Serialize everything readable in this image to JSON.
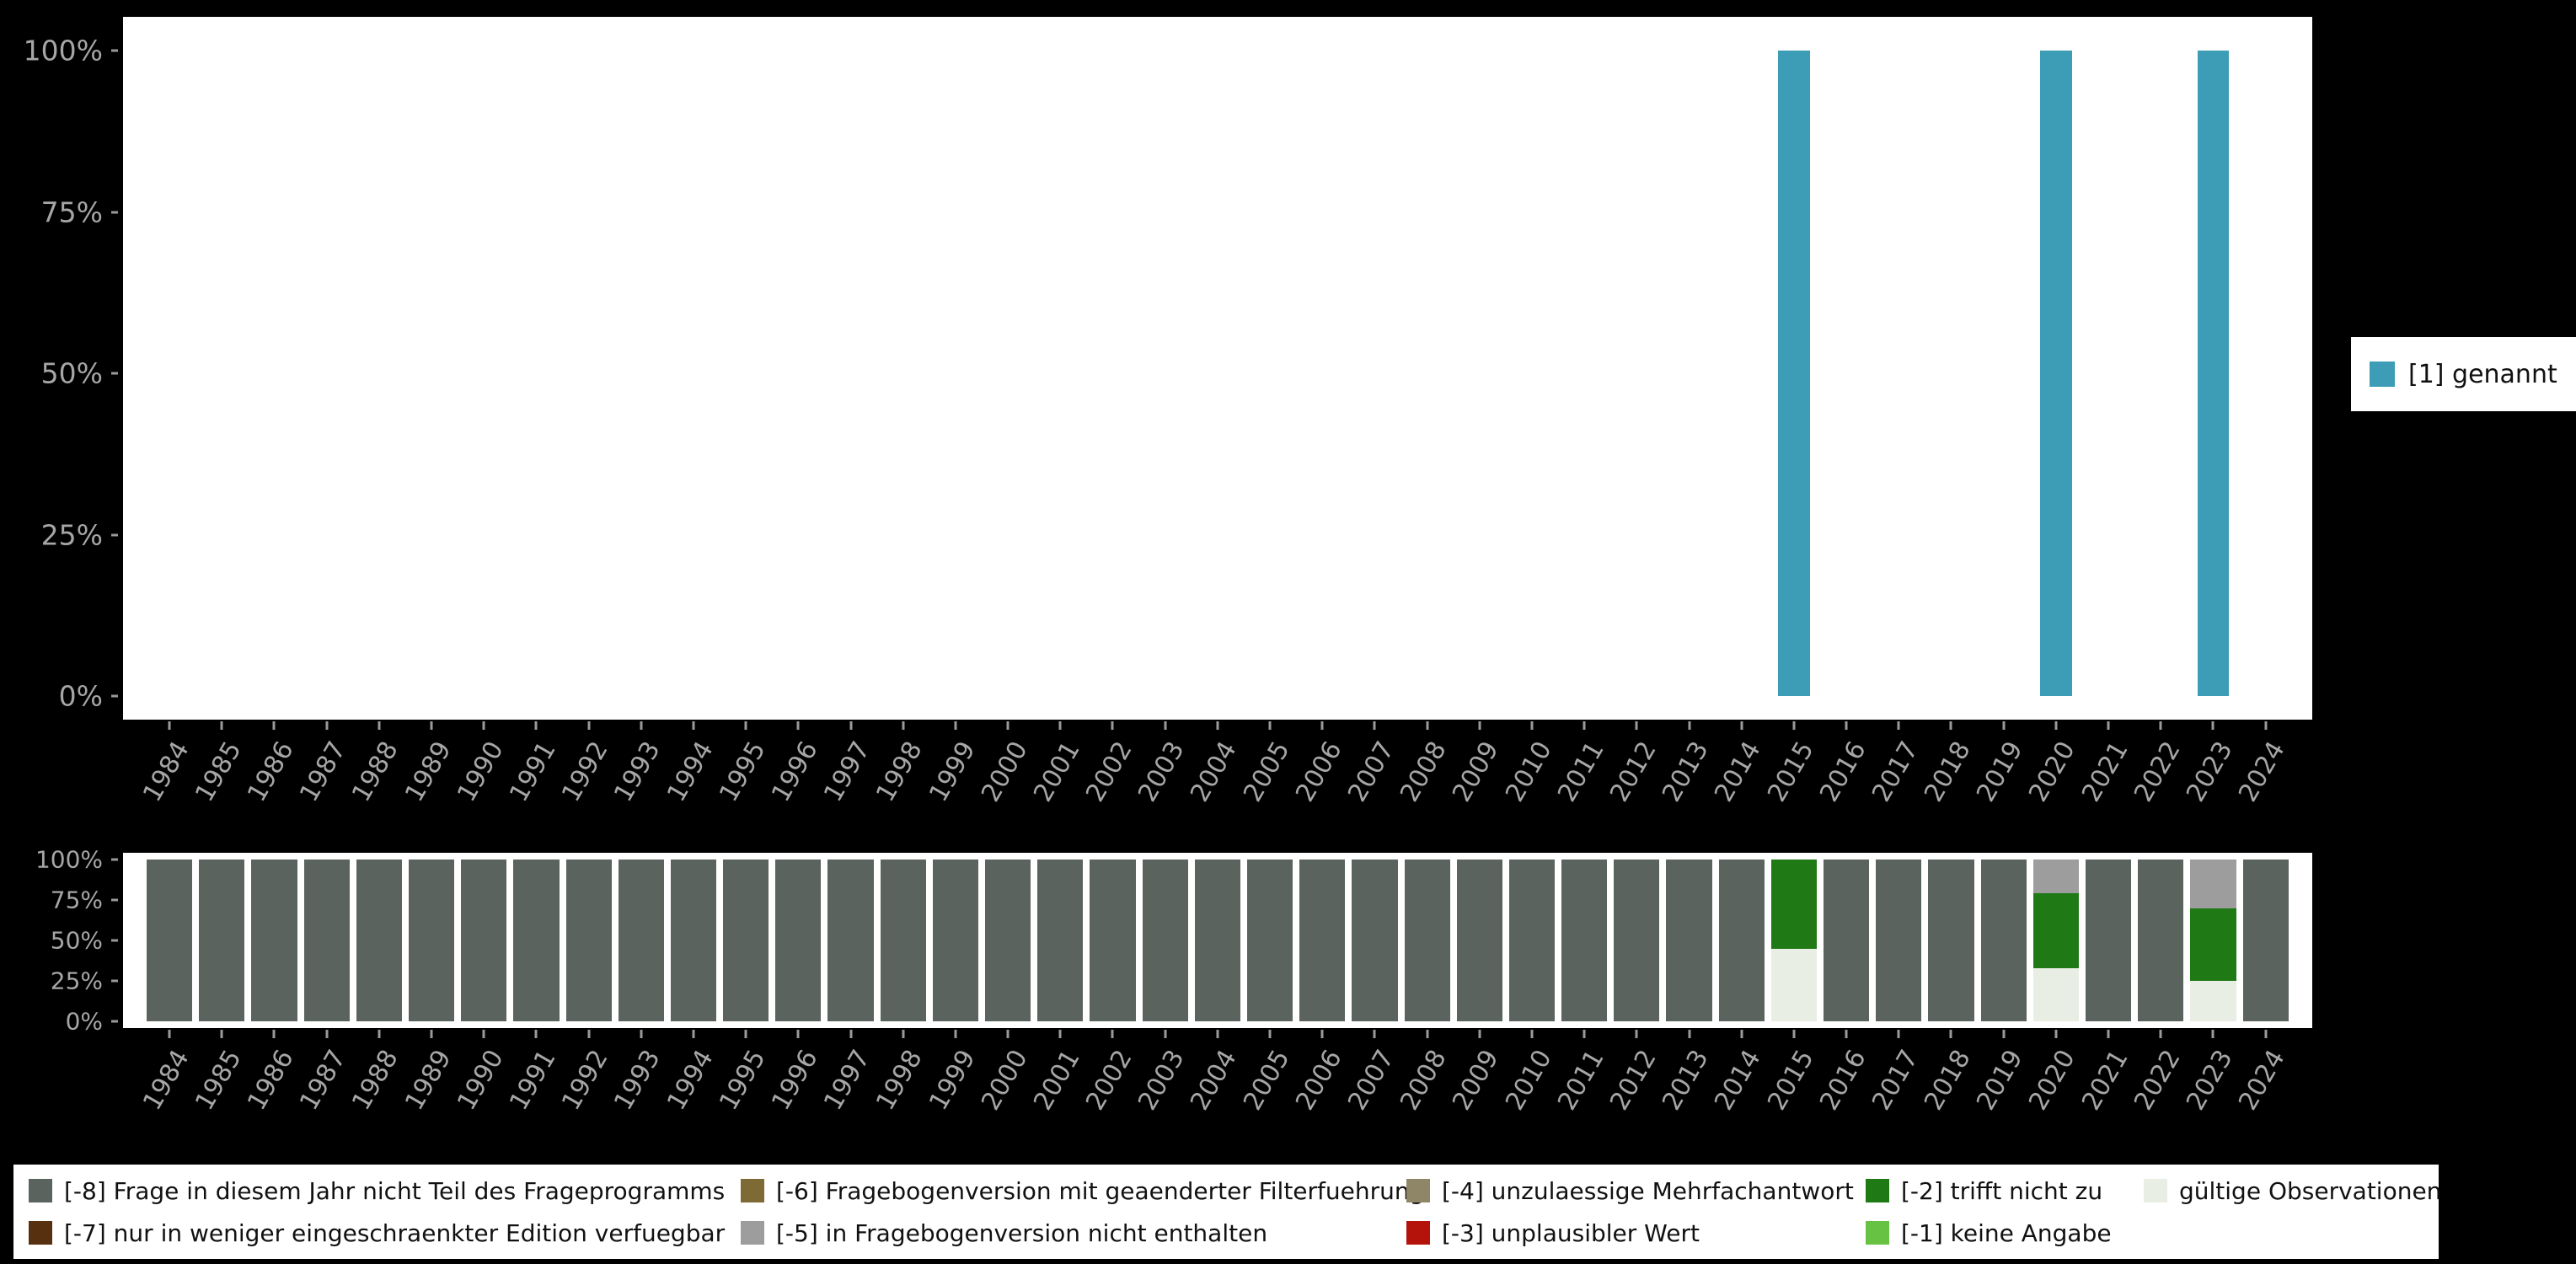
{
  "background_color": "#000000",
  "chart_data": [
    {
      "type": "bar",
      "title": "",
      "xlabel": "",
      "ylabel": "",
      "ylim": [
        0,
        100
      ],
      "yticks_top_down": [
        "100%",
        "75%",
        "50%",
        "25%",
        "0%"
      ],
      "x": [
        "1984",
        "1985",
        "1986",
        "1987",
        "1988",
        "1989",
        "1990",
        "1991",
        "1992",
        "1993",
        "1994",
        "1995",
        "1996",
        "1997",
        "1998",
        "1999",
        "2000",
        "2001",
        "2002",
        "2003",
        "2004",
        "2005",
        "2006",
        "2007",
        "2008",
        "2009",
        "2010",
        "2011",
        "2012",
        "2013",
        "2014",
        "2015",
        "2016",
        "2017",
        "2018",
        "2019",
        "2020",
        "2021",
        "2022",
        "2023",
        "2024"
      ],
      "series": [
        {
          "name": "[1] genannt",
          "color": "#3d9db6",
          "values": [
            0,
            0,
            0,
            0,
            0,
            0,
            0,
            0,
            0,
            0,
            0,
            0,
            0,
            0,
            0,
            0,
            0,
            0,
            0,
            0,
            0,
            0,
            0,
            0,
            0,
            0,
            0,
            0,
            0,
            0,
            0,
            100,
            0,
            0,
            0,
            0,
            100,
            0,
            0,
            100,
            0
          ]
        }
      ],
      "legend_position": "right"
    },
    {
      "type": "bar-stacked",
      "title": "",
      "xlabel": "",
      "ylabel": "",
      "ylim": [
        0,
        100
      ],
      "yticks_top_down": [
        "100%",
        "75%",
        "50%",
        "25%",
        "0%"
      ],
      "x": [
        "1984",
        "1985",
        "1986",
        "1987",
        "1988",
        "1989",
        "1990",
        "1991",
        "1992",
        "1993",
        "1994",
        "1995",
        "1996",
        "1997",
        "1998",
        "1999",
        "2000",
        "2001",
        "2002",
        "2003",
        "2004",
        "2005",
        "2006",
        "2007",
        "2008",
        "2009",
        "2010",
        "2011",
        "2012",
        "2013",
        "2014",
        "2015",
        "2016",
        "2017",
        "2018",
        "2019",
        "2020",
        "2021",
        "2022",
        "2023",
        "2024"
      ],
      "series": [
        {
          "name": "gültige Observationen",
          "color": "#e8eee4",
          "values": [
            0,
            0,
            0,
            0,
            0,
            0,
            0,
            0,
            0,
            0,
            0,
            0,
            0,
            0,
            0,
            0,
            0,
            0,
            0,
            0,
            0,
            0,
            0,
            0,
            0,
            0,
            0,
            0,
            0,
            0,
            0,
            45,
            0,
            0,
            0,
            0,
            33,
            0,
            0,
            25,
            0
          ]
        },
        {
          "name": "[-2] trifft nicht zu",
          "color": "#1f7a16",
          "values": [
            0,
            0,
            0,
            0,
            0,
            0,
            0,
            0,
            0,
            0,
            0,
            0,
            0,
            0,
            0,
            0,
            0,
            0,
            0,
            0,
            0,
            0,
            0,
            0,
            0,
            0,
            0,
            0,
            0,
            0,
            0,
            55,
            0,
            0,
            0,
            0,
            46,
            0,
            0,
            45,
            0
          ]
        },
        {
          "name": "[-5] in Fragebogenversion nicht enthalten",
          "color": "#9d9d9d",
          "values": [
            0,
            0,
            0,
            0,
            0,
            0,
            0,
            0,
            0,
            0,
            0,
            0,
            0,
            0,
            0,
            0,
            0,
            0,
            0,
            0,
            0,
            0,
            0,
            0,
            0,
            0,
            0,
            0,
            0,
            0,
            0,
            0,
            0,
            0,
            0,
            0,
            21,
            0,
            0,
            30,
            0
          ]
        },
        {
          "name": "[-8] Frage in diesem Jahr nicht Teil des Frageprogramms",
          "color": "#5a635d",
          "values": [
            100,
            100,
            100,
            100,
            100,
            100,
            100,
            100,
            100,
            100,
            100,
            100,
            100,
            100,
            100,
            100,
            100,
            100,
            100,
            100,
            100,
            100,
            100,
            100,
            100,
            100,
            100,
            100,
            100,
            100,
            100,
            0,
            100,
            100,
            100,
            100,
            0,
            100,
            100,
            0,
            100
          ]
        }
      ],
      "legend_position": "bottom"
    }
  ],
  "legend_top": {
    "items": [
      {
        "label": "[1] genannt",
        "color": "#3d9db6"
      }
    ]
  },
  "legend_bottom": {
    "items": [
      {
        "label": "[-8] Frage in diesem Jahr nicht Teil des Frageprogramms",
        "color": "#5a635d"
      },
      {
        "label": "[-7] nur in weniger eingeschraenkter Edition verfuegbar",
        "color": "#57300f"
      },
      {
        "label": "[-6] Fragebogenversion mit geaenderter Filterfuehrung",
        "color": "#7d6a34"
      },
      {
        "label": "[-5] in Fragebogenversion nicht enthalten",
        "color": "#9d9d9d"
      },
      {
        "label": "[-4] unzulaessige Mehrfachantwort",
        "color": "#8f8668"
      },
      {
        "label": "[-3] unplausibler Wert",
        "color": "#b3130b"
      },
      {
        "label": "[-2] trifft nicht zu",
        "color": "#1f7a16"
      },
      {
        "label": "[-1] keine Angabe",
        "color": "#67c244"
      },
      {
        "label": "gültige Observationen",
        "color": "#e8eee4"
      }
    ]
  }
}
